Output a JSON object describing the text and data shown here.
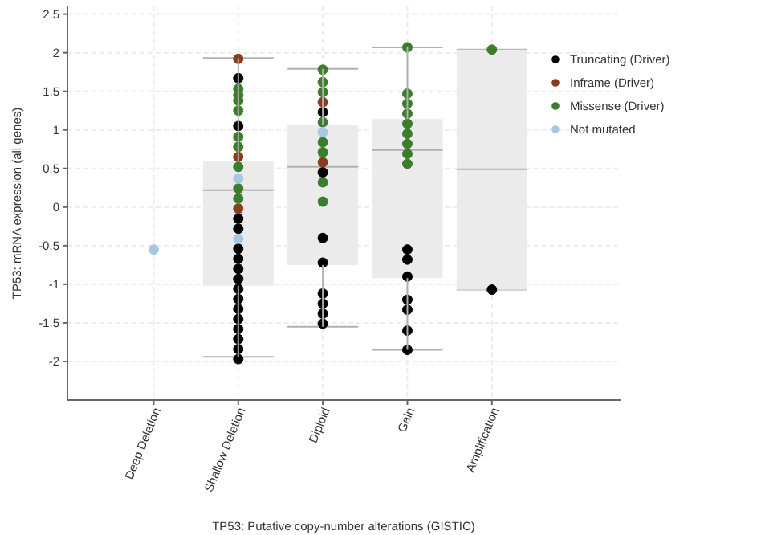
{
  "chart_data": {
    "type": "box",
    "xlabel": "TP53: Putative copy-number alterations (GISTIC)",
    "ylabel": "TP53: mRNA expression (all genes)",
    "categories": [
      "Deep Deletion",
      "Shallow Deletion",
      "Diploid",
      "Gain",
      "Amplification"
    ],
    "boxes": [
      null,
      {
        "low": -1.94,
        "q1": -1.02,
        "median": 0.22,
        "q3": 0.6,
        "high": 1.93
      },
      {
        "low": -1.55,
        "q1": -0.75,
        "median": 0.52,
        "q3": 1.07,
        "high": 1.79
      },
      {
        "low": -1.85,
        "q1": -0.92,
        "median": 0.74,
        "q3": 1.14,
        "high": 2.07
      },
      {
        "low": -1.07,
        "q1": -1.07,
        "median": 0.49,
        "q3": 2.04,
        "high": 2.04
      }
    ],
    "series": [
      {
        "type": "scatter",
        "name": "Truncating (Driver)",
        "color": "#000000",
        "x": [
          "Shallow Deletion",
          "Shallow Deletion",
          "Shallow Deletion",
          "Shallow Deletion",
          "Shallow Deletion",
          "Shallow Deletion",
          "Shallow Deletion",
          "Shallow Deletion",
          "Shallow Deletion",
          "Shallow Deletion",
          "Shallow Deletion",
          "Shallow Deletion",
          "Shallow Deletion",
          "Shallow Deletion",
          "Shallow Deletion",
          "Shallow Deletion",
          "Diploid",
          "Diploid",
          "Diploid",
          "Diploid",
          "Diploid",
          "Diploid",
          "Diploid",
          "Diploid",
          "Gain",
          "Gain",
          "Gain",
          "Gain",
          "Gain",
          "Gain",
          "Gain",
          "Amplification"
        ],
        "values": [
          1.67,
          1.05,
          -0.28,
          -0.67,
          -0.8,
          -0.93,
          -1.06,
          -1.19,
          -1.32,
          -1.45,
          -1.58,
          -1.71,
          -1.84,
          -1.97,
          -0.54,
          -0.15,
          1.23,
          0.45,
          -0.4,
          -0.72,
          -1.12,
          -1.25,
          -1.38,
          -1.51,
          -0.55,
          -0.68,
          -0.9,
          -1.2,
          -1.33,
          -1.6,
          -1.85,
          -1.07
        ]
      },
      {
        "type": "scatter",
        "name": "Inframe (Driver)",
        "color": "#8a3c1e",
        "x": [
          "Shallow Deletion",
          "Shallow Deletion",
          "Shallow Deletion",
          "Diploid",
          "Diploid"
        ],
        "values": [
          1.92,
          0.65,
          -0.02,
          1.36,
          0.58
        ]
      },
      {
        "type": "scatter",
        "name": "Missense (Driver)",
        "color": "#3a7d2a",
        "x": [
          "Shallow Deletion",
          "Shallow Deletion",
          "Shallow Deletion",
          "Shallow Deletion",
          "Shallow Deletion",
          "Shallow Deletion",
          "Shallow Deletion",
          "Shallow Deletion",
          "Shallow Deletion",
          "Diploid",
          "Diploid",
          "Diploid",
          "Diploid",
          "Diploid",
          "Diploid",
          "Diploid",
          "Diploid",
          "Gain",
          "Gain",
          "Gain",
          "Gain",
          "Gain",
          "Gain",
          "Gain",
          "Gain",
          "Gain",
          "Amplification"
        ],
        "values": [
          1.53,
          1.38,
          1.25,
          0.91,
          0.78,
          0.52,
          0.24,
          0.11,
          1.45,
          1.78,
          1.62,
          1.49,
          1.1,
          0.84,
          0.71,
          0.32,
          0.07,
          2.07,
          1.47,
          1.34,
          1.21,
          1.08,
          0.95,
          0.82,
          0.69,
          0.56,
          2.04
        ]
      },
      {
        "type": "scatter",
        "name": "Not mutated",
        "color": "#a6c8e0",
        "x": [
          "Deep Deletion",
          "Shallow Deletion",
          "Shallow Deletion",
          "Diploid"
        ],
        "values": [
          -0.55,
          0.37,
          -0.41,
          0.97
        ]
      }
    ],
    "ylim": [
      -2.5,
      2.6
    ],
    "yticks": [
      -2,
      -1.5,
      -1,
      -0.5,
      0,
      0.5,
      1,
      1.5,
      2,
      2.5
    ],
    "grid": true,
    "legend": "top right"
  }
}
